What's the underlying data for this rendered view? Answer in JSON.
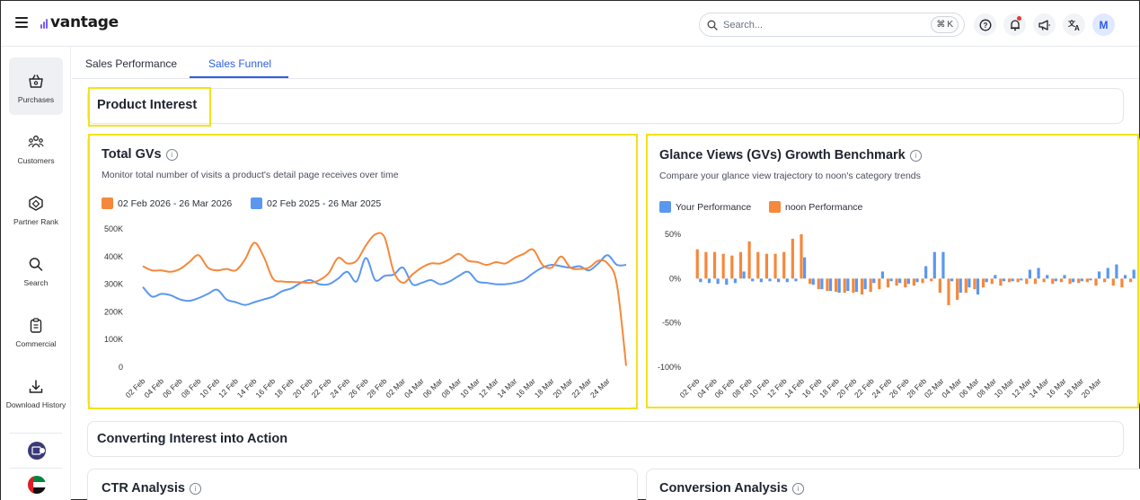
{
  "app": {
    "logo_text": "vantage"
  },
  "colors": {
    "accent": "#2c5fe0",
    "orange": "#f5883b",
    "blue": "#5b97f0",
    "highlight": "#f3e219"
  },
  "search": {
    "placeholder": "Search...",
    "shortcut_symbol": "⌘",
    "shortcut_key": "K"
  },
  "topbar": {
    "icons": [
      "help-icon",
      "notification-bell-icon",
      "megaphone-icon",
      "translate-icon"
    ],
    "avatar_initial": "M"
  },
  "sidebar": {
    "items": [
      {
        "label": "Purchases",
        "icon": "shopping-basket-icon",
        "active": true
      },
      {
        "label": "Customers",
        "icon": "customers-icon",
        "active": false
      },
      {
        "label": "Partner Rank",
        "icon": "partner-rank-icon",
        "active": false
      },
      {
        "label": "Search",
        "icon": "search-icon",
        "active": false
      },
      {
        "label": "Commercial",
        "icon": "clipboard-icon",
        "active": false
      },
      {
        "label": "Download History",
        "icon": "download-icon",
        "active": false
      }
    ]
  },
  "tabs": [
    {
      "label": "Sales Performance",
      "active": false
    },
    {
      "label": "Sales Funnel",
      "active": true
    }
  ],
  "sections": {
    "product_interest": "Product Interest",
    "converting": "Converting Interest into Action",
    "ctr": "CTR Analysis",
    "conversion": "Conversion Analysis"
  },
  "total_gvs": {
    "title": "Total GVs",
    "subtitle": "Monitor total number of visits a product's detail page receives over time",
    "legend": [
      "02 Feb 2026 - 26 Mar 2026",
      "02 Feb 2025 - 26 Mar 2025"
    ]
  },
  "growth": {
    "title": "Glance Views (GVs) Growth Benchmark",
    "subtitle": "Compare your glance view trajectory to noon's category trends",
    "legend": [
      "Your Performance",
      "noon Performance"
    ]
  },
  "chart_data": [
    {
      "type": "line",
      "title": "Total GVs",
      "yticks": [
        "500K",
        "400K",
        "300K",
        "200K",
        "100K",
        "0"
      ],
      "ylim": [
        0,
        500000
      ],
      "x": [
        "02 Feb",
        "03 Feb",
        "04 Feb",
        "05 Feb",
        "06 Feb",
        "07 Feb",
        "08 Feb",
        "09 Feb",
        "10 Feb",
        "11 Feb",
        "12 Feb",
        "13 Feb",
        "14 Feb",
        "15 Feb",
        "16 Feb",
        "17 Feb",
        "18 Feb",
        "19 Feb",
        "20 Feb",
        "21 Feb",
        "22 Feb",
        "23 Feb",
        "24 Feb",
        "25 Feb",
        "26 Feb",
        "27 Feb",
        "28 Feb",
        "01 Mar",
        "02 Mar",
        "03 Mar",
        "04 Mar",
        "05 Mar",
        "06 Mar",
        "07 Mar",
        "08 Mar",
        "09 Mar",
        "10 Mar",
        "11 Mar",
        "12 Mar",
        "13 Mar",
        "14 Mar",
        "15 Mar",
        "16 Mar",
        "17 Mar",
        "18 Mar",
        "19 Mar",
        "20 Mar",
        "21 Mar",
        "22 Mar",
        "23 Mar",
        "24 Mar",
        "25 Mar",
        "26 Mar"
      ],
      "xticks": [
        "02 Feb",
        "04 Feb",
        "06 Feb",
        "08 Feb",
        "10 Feb",
        "12 Feb",
        "14 Feb",
        "16 Feb",
        "18 Feb",
        "20 Feb",
        "22 Feb",
        "24 Feb",
        "26 Feb",
        "28 Feb",
        "02 Mar",
        "04 Mar",
        "06 Mar",
        "08 Mar",
        "10 Mar",
        "12 Mar",
        "14 Mar",
        "16 Mar",
        "18 Mar",
        "20 Mar",
        "22 Mar",
        "24 Mar"
      ],
      "series": [
        {
          "name": "02 Feb 2026 - 26 Mar 2026",
          "color": "#f5883b",
          "values": [
            365000,
            350000,
            350000,
            345000,
            355000,
            380000,
            405000,
            360000,
            350000,
            355000,
            350000,
            390000,
            450000,
            400000,
            320000,
            310000,
            308000,
            307000,
            305000,
            315000,
            340000,
            395000,
            375000,
            385000,
            440000,
            480000,
            470000,
            345000,
            305000,
            335000,
            360000,
            375000,
            375000,
            390000,
            410000,
            385000,
            380000,
            370000,
            380000,
            375000,
            395000,
            410000,
            425000,
            370000,
            360000,
            400000,
            360000,
            355000,
            360000,
            385000,
            375000,
            300000,
            5000
          ]
        },
        {
          "name": "02 Feb 2025 - 26 Mar 2025",
          "color": "#5b97f0",
          "values": [
            290000,
            255000,
            265000,
            260000,
            245000,
            240000,
            250000,
            265000,
            280000,
            245000,
            235000,
            225000,
            235000,
            245000,
            255000,
            275000,
            285000,
            305000,
            315000,
            300000,
            300000,
            320000,
            345000,
            310000,
            395000,
            315000,
            330000,
            335000,
            360000,
            300000,
            305000,
            315000,
            300000,
            310000,
            330000,
            345000,
            310000,
            305000,
            300000,
            300000,
            305000,
            315000,
            340000,
            360000,
            370000,
            365000,
            360000,
            365000,
            350000,
            375000,
            405000,
            370000,
            370000
          ]
        }
      ]
    },
    {
      "type": "bar",
      "title": "Glance Views (GVs) Growth Benchmark",
      "yticks": [
        "50%",
        "0%",
        "-50%",
        "-100%"
      ],
      "ylim": [
        -100,
        50
      ],
      "xticks": [
        "02 Feb",
        "04 Feb",
        "06 Feb",
        "08 Feb",
        "10 Feb",
        "12 Feb",
        "14 Feb",
        "16 Feb",
        "18 Feb",
        "20 Feb",
        "22 Feb",
        "24 Feb",
        "26 Feb",
        "28 Feb",
        "02 Mar",
        "04 Mar",
        "06 Mar",
        "08 Mar",
        "10 Mar",
        "12 Mar",
        "14 Mar",
        "16 Mar",
        "18 Mar",
        "20 Mar"
      ],
      "series": [
        {
          "name": "noon Performance",
          "color": "#f5883b",
          "values": [
            33,
            30,
            30,
            28,
            26,
            30,
            42,
            30,
            28,
            28,
            30,
            45,
            50,
            -6,
            -12,
            -14,
            -15,
            -16,
            -16,
            -18,
            -15,
            -12,
            -10,
            -8,
            -10,
            -8,
            -5,
            -3,
            -16,
            -30,
            -24,
            -16,
            -12,
            -10,
            -6,
            -8,
            -4,
            -4,
            -6,
            -6,
            -4,
            -6,
            -4,
            -6,
            -5,
            -4,
            -8,
            -4,
            -8,
            -10,
            -4
          ]
        },
        {
          "name": "Your Performance",
          "color": "#5b97f0",
          "values": [
            -4,
            -5,
            -6,
            -7,
            -5,
            8,
            -3,
            -4,
            -3,
            -4,
            -4,
            -3,
            24,
            -7,
            -12,
            -14,
            -16,
            -14,
            -15,
            -12,
            -5,
            8,
            -3,
            -5,
            -6,
            -4,
            14,
            30,
            30,
            -3,
            -16,
            -10,
            -18,
            -4,
            4,
            -3,
            -3,
            -2,
            10,
            12,
            4,
            -3,
            4,
            -4,
            -3,
            -2,
            8,
            12,
            16,
            4,
            10
          ]
        }
      ]
    }
  ]
}
